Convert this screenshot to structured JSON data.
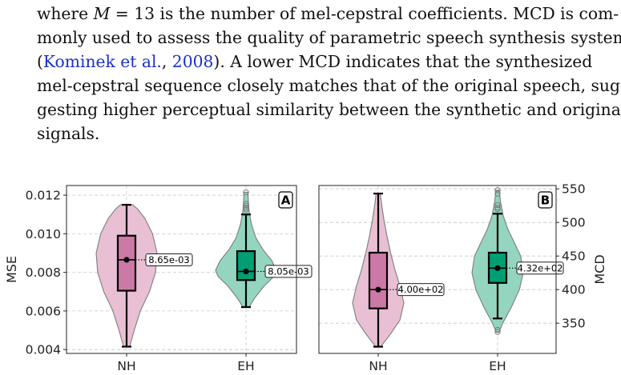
{
  "paragraph": {
    "line1": {
      "a": "where ",
      "m": "M",
      "b": " = 13 is the number of mel-cepstral coefficients. MCD is com-"
    },
    "line2": "monly used to assess the quality of parametric speech synthesis systems",
    "line3": {
      "open": "(",
      "author": "Kominek et al.",
      "sep": ", ",
      "year": "2008",
      "close": ").  A lower MCD indicates that the synthesized"
    },
    "line4": "mel-cepstral sequence closely matches that of the original speech, sug-",
    "line5": "gesting higher perceptual similarity between the synthetic and original",
    "line6": "signals."
  },
  "colors": {
    "nh": "#cc79a7",
    "eh": "#009e73",
    "nh_violin": "#e8bcd2",
    "eh_violin": "#8ed3bd"
  },
  "chart_data": [
    {
      "type": "violin-box",
      "panel": "A",
      "categories": [
        "NH",
        "EH"
      ],
      "ylabel": "MSE",
      "ylim": [
        0.0038,
        0.0125
      ],
      "yticks": [
        "0.004",
        "0.006",
        "0.008",
        "0.010",
        "0.012"
      ],
      "yticks_values": [
        0.004,
        0.006,
        0.008,
        0.01,
        0.012
      ],
      "grid": true,
      "series": [
        {
          "category": "NH",
          "min": 0.00415,
          "q1": 0.00705,
          "median": 0.00865,
          "q3": 0.0099,
          "max": 0.0115,
          "label": "8.65e-03",
          "outliers": [],
          "violin": [
            [
              0.00415,
              0.1
            ],
            [
              0.005,
              0.25
            ],
            [
              0.006,
              0.45
            ],
            [
              0.007,
              0.75
            ],
            [
              0.008,
              0.95
            ],
            [
              0.009,
              1.0
            ],
            [
              0.01,
              0.85
            ],
            [
              0.0108,
              0.6
            ],
            [
              0.0113,
              0.35
            ],
            [
              0.0115,
              0.2
            ]
          ]
        },
        {
          "category": "EH",
          "min": 0.0062,
          "q1": 0.0076,
          "median": 0.00805,
          "q3": 0.0091,
          "max": 0.011,
          "label": "8.05e-03",
          "outliers": [
            0.01125,
            0.01135,
            0.01145,
            0.01155,
            0.01215
          ],
          "violin": [
            [
              0.0062,
              0.1
            ],
            [
              0.0067,
              0.3
            ],
            [
              0.0073,
              0.6
            ],
            [
              0.0078,
              0.92
            ],
            [
              0.0081,
              1.0
            ],
            [
              0.0086,
              0.85
            ],
            [
              0.0092,
              0.55
            ],
            [
              0.0098,
              0.32
            ],
            [
              0.0105,
              0.18
            ],
            [
              0.0112,
              0.1
            ],
            [
              0.01215,
              0.06
            ]
          ]
        }
      ]
    },
    {
      "type": "violin-box",
      "panel": "B",
      "categories": [
        "NH",
        "EH"
      ],
      "ylabel": "MCD",
      "ylim": [
        305,
        555
      ],
      "yticks": [
        "350",
        "400",
        "450",
        "500",
        "550"
      ],
      "yticks_values": [
        350,
        400,
        450,
        500,
        550
      ],
      "grid": true,
      "series": [
        {
          "category": "NH",
          "min": 315,
          "q1": 372,
          "median": 400,
          "q3": 455,
          "max": 543,
          "label": "4.00e+02",
          "outliers": [],
          "violin": [
            [
              315,
              0.1
            ],
            [
              335,
              0.5
            ],
            [
              355,
              0.85
            ],
            [
              380,
              1.0
            ],
            [
              405,
              0.85
            ],
            [
              430,
              0.65
            ],
            [
              455,
              0.48
            ],
            [
              480,
              0.34
            ],
            [
              505,
              0.22
            ],
            [
              525,
              0.14
            ],
            [
              543,
              0.08
            ]
          ]
        },
        {
          "category": "EH",
          "min": 357,
          "q1": 410,
          "median": 432,
          "q3": 455,
          "max": 513,
          "label": "4.32e+02",
          "outliers": [
            337,
            340,
            520,
            522,
            526,
            543,
            548
          ],
          "violin": [
            [
              337,
              0.06
            ],
            [
              350,
              0.2
            ],
            [
              375,
              0.55
            ],
            [
              400,
              0.85
            ],
            [
              425,
              1.0
            ],
            [
              450,
              0.9
            ],
            [
              470,
              0.65
            ],
            [
              490,
              0.4
            ],
            [
              510,
              0.22
            ],
            [
              530,
              0.12
            ],
            [
              548,
              0.06
            ]
          ]
        }
      ]
    }
  ]
}
